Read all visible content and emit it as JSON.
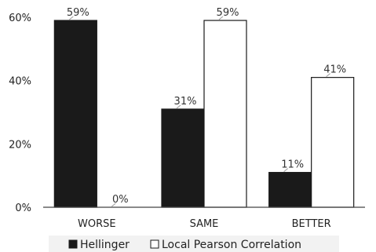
{
  "chart_data": {
    "type": "bar",
    "categories": [
      "WORSE",
      "SAME",
      "BETTER"
    ],
    "series": [
      {
        "name": "Hellinger",
        "values": [
          59,
          31,
          11
        ],
        "color": "#1a1a1a"
      },
      {
        "name": "Local Pearson Correlation",
        "values": [
          0,
          59,
          41
        ],
        "color": "#ffffff"
      }
    ],
    "data_labels": [
      [
        "59%",
        "31%",
        "11%"
      ],
      [
        "0%",
        "59%",
        "41%"
      ]
    ],
    "title": "",
    "xlabel": "",
    "ylabel": "",
    "ylim": [
      0,
      60
    ],
    "yticks": [
      0,
      20,
      40,
      60
    ],
    "ytick_labels": [
      "0%",
      "20%",
      "40%",
      "60%"
    ],
    "grid": false,
    "legend_position": "bottom",
    "colors": {
      "axis": "#444444",
      "bar_outline": "#1a1a1a",
      "legend_bg": "#f2f2f2"
    }
  }
}
